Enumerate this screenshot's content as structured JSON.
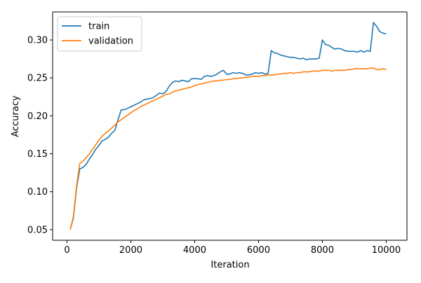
{
  "chart_data": {
    "type": "line",
    "xlabel": "Iteration",
    "ylabel": "Accuracy",
    "xlim": [
      -450,
      10650
    ],
    "ylim": [
      0.036,
      0.337
    ],
    "xticks": [
      0,
      2000,
      4000,
      6000,
      8000,
      10000
    ],
    "yticks": [
      0.05,
      0.1,
      0.15,
      0.2,
      0.25,
      0.3
    ],
    "xtick_labels": [
      "0",
      "2000",
      "4000",
      "6000",
      "8000",
      "10000"
    ],
    "ytick_labels": [
      "0.05",
      "0.10",
      "0.15",
      "0.20",
      "0.25",
      "0.30"
    ],
    "grid": false,
    "legend_position": "upper left",
    "x": [
      100,
      200,
      300,
      400,
      500,
      600,
      700,
      800,
      900,
      1000,
      1100,
      1200,
      1300,
      1400,
      1500,
      1600,
      1700,
      1800,
      1900,
      2000,
      2100,
      2200,
      2300,
      2400,
      2500,
      2600,
      2700,
      2800,
      2900,
      3000,
      3100,
      3200,
      3300,
      3400,
      3500,
      3600,
      3700,
      3800,
      3900,
      4000,
      4100,
      4200,
      4300,
      4400,
      4500,
      4600,
      4700,
      4800,
      4900,
      5000,
      5100,
      5200,
      5300,
      5400,
      5500,
      5600,
      5700,
      5800,
      5900,
      6000,
      6100,
      6200,
      6300,
      6400,
      6500,
      6600,
      6700,
      6800,
      6900,
      7000,
      7100,
      7200,
      7300,
      7400,
      7500,
      7600,
      7700,
      7800,
      7900,
      8000,
      8100,
      8200,
      8300,
      8400,
      8500,
      8600,
      8700,
      8800,
      8900,
      9000,
      9100,
      9200,
      9300,
      9400,
      9500,
      9600,
      9700,
      9800,
      9900,
      10000
    ],
    "series": [
      {
        "name": "train",
        "color": "#1f77b4",
        "values": [
          0.05,
          0.065,
          0.105,
          0.13,
          0.132,
          0.136,
          0.143,
          0.149,
          0.156,
          0.161,
          0.167,
          0.169,
          0.172,
          0.177,
          0.181,
          0.195,
          0.208,
          0.208,
          0.21,
          0.212,
          0.214,
          0.216,
          0.218,
          0.221,
          0.222,
          0.223,
          0.224,
          0.227,
          0.23,
          0.229,
          0.232,
          0.239,
          0.244,
          0.246,
          0.245,
          0.247,
          0.246,
          0.245,
          0.249,
          0.249,
          0.249,
          0.248,
          0.252,
          0.253,
          0.252,
          0.253,
          0.255,
          0.258,
          0.26,
          0.255,
          0.255,
          0.257,
          0.256,
          0.257,
          0.256,
          0.254,
          0.254,
          0.255,
          0.257,
          0.256,
          0.257,
          0.255,
          0.256,
          0.286,
          0.283,
          0.282,
          0.28,
          0.279,
          0.278,
          0.277,
          0.277,
          0.276,
          0.275,
          0.276,
          0.274,
          0.275,
          0.275,
          0.275,
          0.276,
          0.3,
          0.294,
          0.293,
          0.29,
          0.288,
          0.289,
          0.288,
          0.286,
          0.285,
          0.285,
          0.285,
          0.284,
          0.286,
          0.284,
          0.286,
          0.285,
          0.323,
          0.318,
          0.311,
          0.309,
          0.308
        ]
      },
      {
        "name": "validation",
        "color": "#ff7f0e",
        "values": [
          0.05,
          0.067,
          0.108,
          0.137,
          0.14,
          0.145,
          0.15,
          0.156,
          0.162,
          0.168,
          0.173,
          0.177,
          0.18,
          0.184,
          0.188,
          0.192,
          0.195,
          0.198,
          0.201,
          0.204,
          0.207,
          0.209,
          0.212,
          0.214,
          0.216,
          0.218,
          0.22,
          0.222,
          0.224,
          0.226,
          0.228,
          0.229,
          0.231,
          0.233,
          0.234,
          0.235,
          0.236,
          0.237,
          0.238,
          0.24,
          0.241,
          0.242,
          0.243,
          0.244,
          0.245,
          0.246,
          0.246,
          0.247,
          0.247,
          0.248,
          0.248,
          0.249,
          0.249,
          0.25,
          0.25,
          0.251,
          0.251,
          0.252,
          0.252,
          0.252,
          0.253,
          0.253,
          0.254,
          0.254,
          0.254,
          0.255,
          0.255,
          0.256,
          0.256,
          0.257,
          0.256,
          0.257,
          0.257,
          0.258,
          0.258,
          0.258,
          0.259,
          0.259,
          0.259,
          0.26,
          0.26,
          0.26,
          0.259,
          0.26,
          0.26,
          0.26,
          0.26,
          0.261,
          0.261,
          0.262,
          0.262,
          0.262,
          0.262,
          0.262,
          0.263,
          0.263,
          0.261,
          0.261,
          0.262,
          0.261
        ]
      }
    ]
  }
}
